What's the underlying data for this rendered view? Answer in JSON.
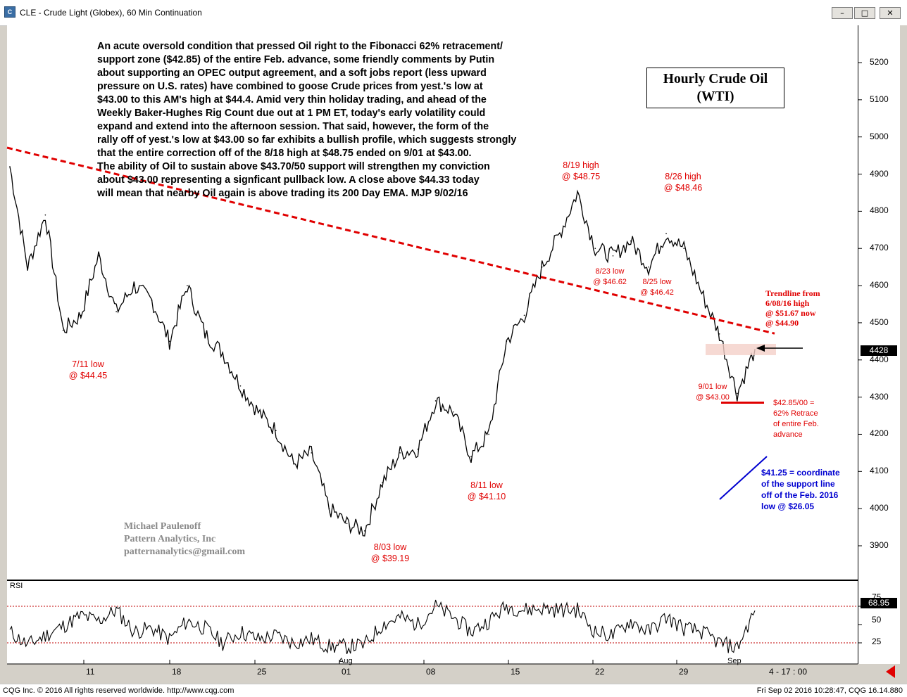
{
  "window": {
    "app_icon": "cqg-app-icon",
    "title": "CLE - Crude Light (Globex), 60 Min Continuation",
    "minimize_label": "–",
    "maximize_label": "□",
    "close_label": "✕"
  },
  "commentary": "An acute oversold condition that pressed Oil right to the Fibonacci 62% retracement/\nsupport zone ($42.85) of the entire Feb. advance, some friendly comments by Putin\nabout supporting an OPEC output agreement, and a soft jobs report (less upward\npressure on U.S. rates) have combined to goose Crude prices from yest.'s low at\n$43.00 to this AM's high at $44.4. Amid very thin holiday trading, and ahead of the\nWeekly Baker-Hughes Rig Count due out at 1 PM ET, today's early volatility could\nexpand and extend into the afternoon session.  That said, however, the form of the\nrally off of yest.'s low at $43.00 so far exhibits a bullish profile, which suggests strongly\nthat the entire correction off of the 8/18 high at $48.75 ended on 9/01 at $43.00.\nThe ability of Oil to sustain above $43.70/50 support will strengthen my conviction\nabout $43.00 representing a signficant pullback low.  A close above $44.33 today\nwill mean that nearby Oil again is above trading its 200 Day EMA. MJP 9/02/16",
  "chart_title": "Hourly Crude Oil\n(WTI)",
  "annotations": {
    "jul11": "7/11 low\n@ $44.45",
    "aug03": "8/03 low\n@ $39.19",
    "aug11": "8/11 low\n@ $41.10",
    "aug19": "8/19 high\n@ $48.75",
    "aug26": "8/26 high\n@ $48.46",
    "aug23": "8/23 low\n@ $46.62",
    "aug25": "8/25 low\n@ $46.42",
    "sep01": "9/01 low\n@ $43.00",
    "trendline": "Trendline from\n6/08/16 high\n@ $51.67 now\n@ $44.90",
    "retrace": "$42.85/00 =\n62% Retrace\nof entire Feb.\nadvance",
    "support": "$41.25 = coordinate\nof the support line\noff of the Feb. 2016\nlow @ $26.05"
  },
  "signature": "Michael Paulenoff\nPattern Analytics, Inc\npatternanalytics@gmail.com",
  "last_price_label": "4428",
  "rsi": {
    "label": "RSI",
    "last_label": "68.95",
    "levels": [
      "75",
      "50",
      "25"
    ]
  },
  "x_month_labels": [
    "Aug",
    "Sep"
  ],
  "time_label": "4 - 17 : 00",
  "status": {
    "left": "CQG Inc. © 2016 All rights reserved worldwide. http://www.cqg.com",
    "right": "Fri Sep 02 2016 10:28:47, CQG 16.14.880"
  },
  "colors": {
    "price": "#000000",
    "trendline": "#e00000",
    "annotation": "#e00000",
    "support_line": "#0000d0",
    "rsi_band": "#c00000"
  },
  "chart_data": {
    "type": "line",
    "title": "Hourly Crude Oil (WTI)",
    "xlabel": "",
    "ylabel": "",
    "y_unit": "price x100 (cents)",
    "ylim": [
      3830,
      5270
    ],
    "y_ticks": [
      5200,
      5100,
      5000,
      4900,
      4800,
      4700,
      4600,
      4500,
      4400,
      4300,
      4200,
      4100,
      4000,
      3900
    ],
    "x_ticks": [
      "11",
      "18",
      "25",
      "01",
      "08",
      "15",
      "22",
      "29",
      "Sep"
    ],
    "x": [
      "7/06",
      "7/07",
      "7/08",
      "7/11",
      "7/12",
      "7/13",
      "7/14",
      "7/15",
      "7/18",
      "7/19",
      "7/20",
      "7/21",
      "7/22",
      "7/25",
      "7/26",
      "7/27",
      "7/28",
      "7/29",
      "8/01",
      "8/02",
      "8/03",
      "8/04",
      "8/05",
      "8/08",
      "8/09",
      "8/10",
      "8/11",
      "8/12",
      "8/15",
      "8/16",
      "8/17",
      "8/18",
      "8/19",
      "8/22",
      "8/23",
      "8/24",
      "8/25",
      "8/26",
      "8/29",
      "8/30",
      "8/31",
      "9/01",
      "9/02"
    ],
    "series": [
      {
        "values": [
          4920,
          4650,
          4790,
          4480,
          4520,
          4680,
          4530,
          4600,
          4560,
          4450,
          4600,
          4470,
          4420,
          4330,
          4260,
          4210,
          4120,
          4150,
          4000,
          3960,
          3940,
          4070,
          4150,
          4160,
          4290,
          4260,
          4140,
          4200,
          4450,
          4520,
          4650,
          4740,
          4850,
          4700,
          4680,
          4720,
          4650,
          4740,
          4700,
          4580,
          4470,
          4310,
          4428
        ]
      }
    ],
    "trendline": {
      "from": "6/08/16",
      "from_value": 5167,
      "now_value": 4490
    },
    "retrace_level": 4285,
    "rsi": {
      "ylim": [
        0,
        100
      ],
      "levels": [
        75,
        50,
        25
      ],
      "values": [
        40,
        22,
        35,
        48,
        62,
        55,
        70,
        40,
        45,
        30,
        55,
        45,
        25,
        40,
        30,
        35,
        25,
        30,
        20,
        20,
        22,
        50,
        60,
        50,
        75,
        60,
        40,
        55,
        75,
        70,
        72,
        70,
        70,
        40,
        35,
        55,
        40,
        60,
        45,
        40,
        25,
        18,
        69
      ]
    },
    "grid": false,
    "legend": "none"
  }
}
